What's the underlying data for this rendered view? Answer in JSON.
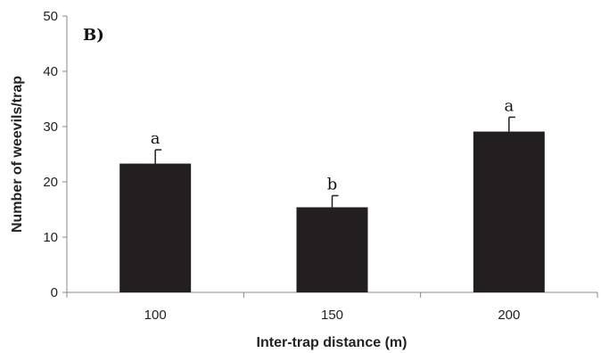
{
  "chart_data": {
    "type": "bar",
    "panel_label": "B)",
    "xlabel": "Inter-trap distance (m)",
    "ylabel": "Number of weevils/trap",
    "ylim": [
      0,
      50
    ],
    "yticks": [
      0,
      10,
      20,
      30,
      40,
      50
    ],
    "categories": [
      "100",
      "150",
      "200"
    ],
    "values": [
      23.3,
      15.4,
      29.1
    ],
    "error_upper": [
      2.5,
      2.1,
      2.6
    ],
    "letters": [
      "a",
      "b",
      "a"
    ],
    "bar_color": "#231f20",
    "grid": false
  }
}
